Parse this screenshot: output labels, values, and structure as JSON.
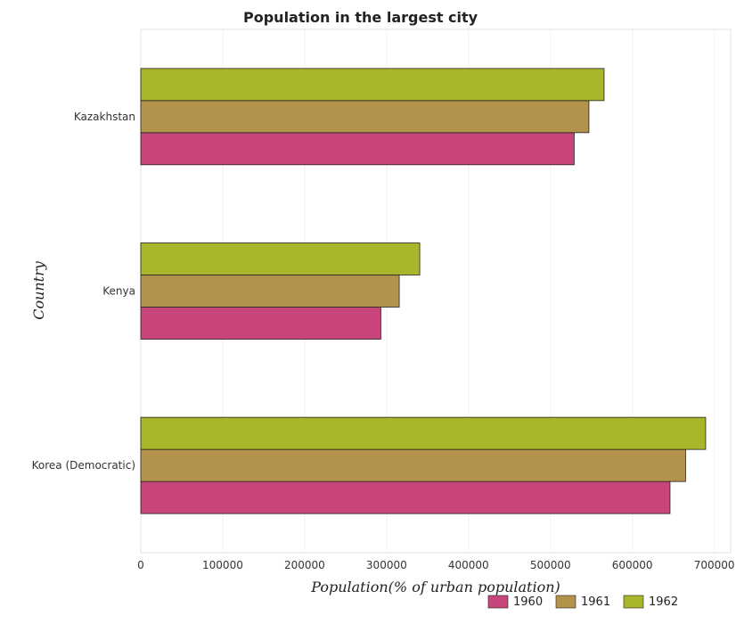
{
  "chart_data": {
    "type": "bar",
    "orientation": "horizontal",
    "title": "Population in the largest city",
    "xlabel": "Population(% of urban population)",
    "ylabel": "Country",
    "categories": [
      "Kazakhstan",
      "Kenya",
      "Korea (Democratic)"
    ],
    "series": [
      {
        "name": "1960",
        "color": "#c7457a",
        "values": [
          529000,
          293000,
          646000
        ]
      },
      {
        "name": "1961",
        "color": "#b3934c",
        "values": [
          547000,
          315500,
          665000
        ]
      },
      {
        "name": "1962",
        "color": "#a9b52a",
        "values": [
          565500,
          340500,
          689500
        ]
      }
    ],
    "xlim": [
      0,
      720000
    ],
    "xticks": [
      0,
      100000,
      200000,
      300000,
      400000,
      500000,
      600000,
      700000
    ],
    "xtick_labels": [
      "0",
      "100000",
      "200000",
      "300000",
      "400000",
      "500000",
      "600000",
      "700000"
    ],
    "grid": true,
    "legend_position": "bottom-right"
  }
}
